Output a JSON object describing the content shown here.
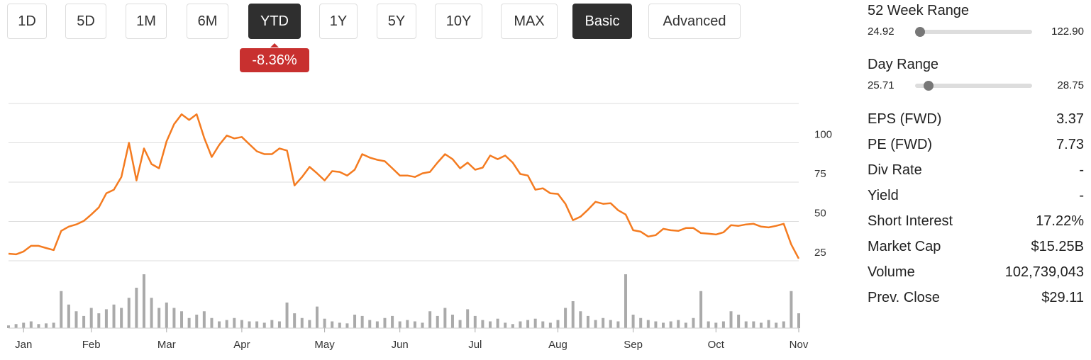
{
  "controls": {
    "periods": [
      "1D",
      "5D",
      "1M",
      "6M",
      "YTD",
      "1Y",
      "5Y",
      "10Y",
      "MAX"
    ],
    "active_period": "YTD",
    "views": [
      "Basic",
      "Advanced"
    ],
    "active_view": "Basic",
    "change": "-8.36%"
  },
  "chart_data": {
    "type": "line",
    "color": "#f47b20",
    "categories": [
      null,
      null,
      "Jan",
      null,
      null,
      null,
      null,
      null,
      null,
      null,
      null,
      "Feb",
      null,
      null,
      null,
      null,
      null,
      null,
      null,
      null,
      null,
      "Mar",
      null,
      null,
      null,
      null,
      null,
      null,
      null,
      null,
      null,
      "Apr",
      null,
      null,
      null,
      null,
      null,
      null,
      null,
      null,
      null,
      null,
      "May",
      null,
      null,
      null,
      null,
      null,
      null,
      null,
      null,
      null,
      "Jun",
      null,
      null,
      null,
      null,
      null,
      null,
      null,
      null,
      null,
      "Jul",
      null,
      null,
      null,
      null,
      null,
      null,
      null,
      null,
      null,
      null,
      "Aug",
      null,
      null,
      null,
      null,
      null,
      null,
      null,
      null,
      null,
      "Sep",
      null,
      null,
      null,
      null,
      null,
      null,
      null,
      null,
      null,
      null,
      "Oct",
      null,
      null,
      null,
      null,
      null,
      null,
      null,
      null,
      null,
      null,
      "Nov"
    ],
    "values": [
      29.5,
      29.1,
      30.9,
      34.5,
      34.5,
      33.1,
      31.8,
      44.0,
      46.7,
      48.1,
      50.3,
      54.4,
      58.9,
      67.9,
      70.2,
      78.3,
      100,
      76.1,
      96.4,
      86.5,
      83.8,
      100.9,
      111.8,
      118.1,
      114.5,
      118.1,
      103.2,
      91.0,
      98.7,
      104.6,
      102.8,
      103.7,
      99.1,
      94.6,
      92.8,
      92.8,
      96.4,
      95.1,
      72.9,
      78.3,
      84.7,
      80.6,
      76.1,
      82.0,
      81.5,
      79.2,
      82.9,
      92.8,
      90.6,
      89.2,
      88.3,
      83.8,
      79.2,
      79.2,
      78.3,
      80.6,
      81.5,
      87.4,
      92.8,
      89.6,
      83.8,
      87.4,
      82.9,
      84.2,
      91.9,
      89.6,
      91.9,
      87.4,
      80.2,
      79.2,
      70.2,
      71.1,
      67.9,
      67.5,
      61.2,
      50.8,
      53.0,
      57.5,
      62.5,
      61.2,
      61.6,
      57.1,
      54.4,
      44.4,
      43.5,
      40.4,
      41.3,
      45.3,
      44.4,
      44.0,
      45.8,
      45.8,
      42.6,
      42.2,
      41.7,
      43.1,
      47.6,
      47.2,
      48.1,
      48.5,
      46.7,
      46.2,
      47.2,
      48.5,
      35.4,
      26.4
    ],
    "ylim": [
      25,
      125
    ],
    "yticks": [
      25,
      50,
      75,
      100
    ],
    "grid": true,
    "volume": {
      "color": "#aaaaaa",
      "ylim": [
        0,
        100
      ],
      "values": [
        4,
        6,
        8,
        10,
        6,
        7,
        8,
        55,
        35,
        25,
        18,
        30,
        22,
        28,
        35,
        30,
        45,
        60,
        80,
        45,
        30,
        38,
        30,
        25,
        15,
        20,
        25,
        15,
        10,
        12,
        15,
        12,
        10,
        10,
        8,
        12,
        10,
        38,
        22,
        15,
        12,
        32,
        14,
        10,
        8,
        7,
        20,
        18,
        12,
        10,
        15,
        18,
        10,
        12,
        10,
        8,
        25,
        18,
        30,
        20,
        12,
        28,
        18,
        12,
        10,
        14,
        8,
        6,
        10,
        12,
        14,
        10,
        8,
        12,
        30,
        40,
        25,
        18,
        12,
        15,
        12,
        10,
        80,
        20,
        15,
        12,
        10,
        8,
        10,
        12,
        8,
        15,
        55,
        10,
        8,
        10,
        25,
        20,
        10,
        10,
        8,
        12,
        8,
        10,
        55,
        22
      ]
    }
  },
  "stats": {
    "ranges": [
      {
        "label": "52 Week Range",
        "low": "24.92",
        "high": "122.90"
      },
      {
        "label": "Day Range",
        "low": "25.71",
        "high": "28.75"
      }
    ],
    "rows": [
      [
        "EPS (FWD)",
        "3.37"
      ],
      [
        "PE (FWD)",
        "7.73"
      ],
      [
        "Div Rate",
        "-"
      ],
      [
        "Yield",
        "-"
      ],
      [
        "Short Interest",
        "17.22%"
      ],
      [
        "Market Cap",
        "$15.25B"
      ],
      [
        "Volume",
        "102,739,043"
      ],
      [
        "Prev. Close",
        "$29.11"
      ]
    ]
  }
}
